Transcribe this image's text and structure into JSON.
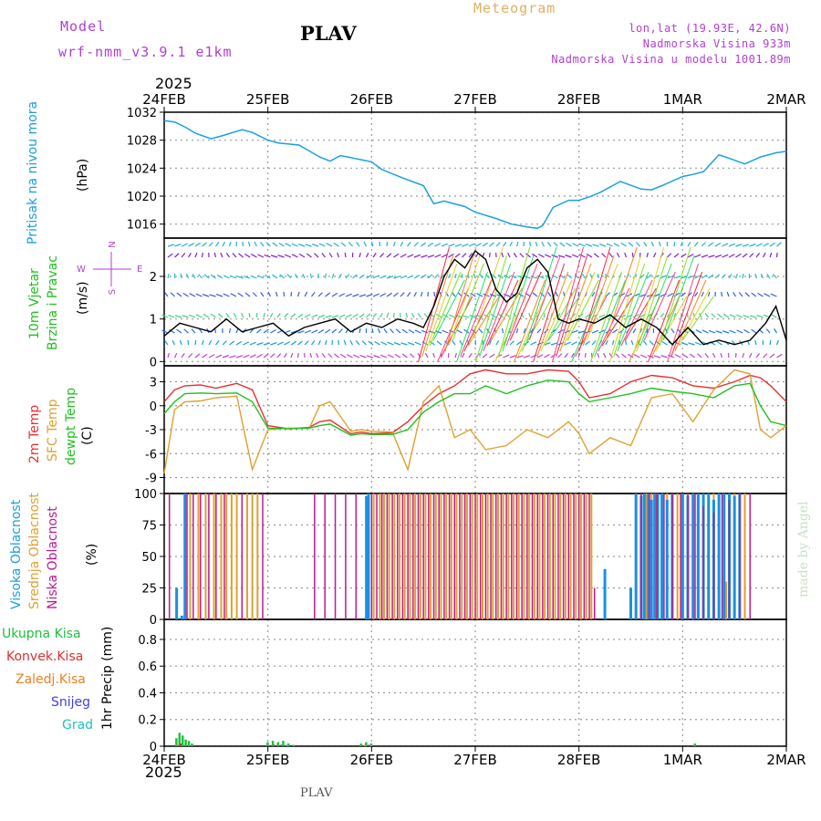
{
  "header": {
    "model_label": "Model",
    "model_name": "wrf-nmm_v3.9.1 e1km",
    "station": "PLAV",
    "meteogram": "Meteogram",
    "coords": "lon,lat (19.93E, 42.6N)",
    "elevation": "Nadmorska Visina 933m",
    "model_elevation": "Nadmorska Visina u modelu 1001.89m",
    "year_top": "2025",
    "year_bottom": "2025",
    "footer_station": "PLAV",
    "watermark": "made by Angel"
  },
  "date_ticks": [
    "24FEB",
    "25FEB",
    "26FEB",
    "27FEB",
    "28FEB",
    "1MAR",
    "2MAR"
  ],
  "panel_labels": {
    "pressure": [
      "Pritisak na nivou mora",
      "(hPa)"
    ],
    "wind": [
      "10m Vjetar",
      "Brzina i Pravac",
      "(m/s)"
    ],
    "wind_rose": {
      "n": "N",
      "s": "S",
      "w": "W",
      "e": "E"
    },
    "temp": [
      "2m Temp",
      "SFC Temp",
      "dewpt Temp",
      "(C)"
    ],
    "cloud": [
      "Visoka Oblacnost",
      "Srednja Oblacnost",
      "Niska Oblacnost",
      "(%)"
    ],
    "precip": [
      "Ukupna Kisa",
      "Konvek.Kisa",
      "Zaledj.Kisa",
      "Snijeg",
      "Grad",
      "1hr Precip (mm)"
    ]
  },
  "colors": {
    "pressure": "#1aa0e0",
    "wind_speed": "#000000",
    "t2m": "#e83030",
    "tsfc": "#e0a030",
    "tdew": "#20c020",
    "cloud_high": "#1a90e0",
    "cloud_mid": "#e0a030",
    "cloud_low": "#c01890",
    "precip_total": "#20c040",
    "precip_conv": "#e03030",
    "precip_frz": "#f08020",
    "precip_snow": "#4040e0",
    "precip_hail": "#20c0c0",
    "model_text": "#b040d0",
    "meteogram_text": "#e0b060"
  },
  "chart_data": [
    {
      "type": "line",
      "panel": "pressure",
      "ylabel": "(hPa)",
      "ylim": [
        1014,
        1032
      ],
      "yticks": [
        1016,
        1020,
        1024,
        1028,
        1032
      ],
      "x": [
        0,
        0.1,
        0.2,
        0.3,
        0.45,
        0.55,
        0.75,
        0.85,
        1.0,
        1.1,
        1.3,
        1.5,
        1.6,
        1.7,
        1.8,
        1.9,
        2.0,
        2.1,
        2.3,
        2.5,
        2.6,
        2.7,
        2.9,
        3.0,
        3.2,
        3.35,
        3.5,
        3.6,
        3.65,
        3.75,
        3.9,
        4.0,
        4.1,
        4.2,
        4.4,
        4.6,
        4.7,
        4.8,
        5.0,
        5.1,
        5.2,
        5.35,
        5.45,
        5.6,
        5.75,
        5.9,
        6.0
      ],
      "values": [
        1030.8,
        1030.6,
        1029.9,
        1029.0,
        1028.2,
        1028.6,
        1029.5,
        1029.1,
        1028.0,
        1027.6,
        1027.3,
        1025.6,
        1025.0,
        1025.8,
        1025.5,
        1025.2,
        1024.9,
        1023.8,
        1022.6,
        1021.5,
        1018.9,
        1019.3,
        1018.5,
        1017.7,
        1016.8,
        1016.0,
        1015.6,
        1015.4,
        1015.8,
        1018.4,
        1019.4,
        1019.4,
        1019.9,
        1020.5,
        1022.1,
        1021.0,
        1020.9,
        1021.5,
        1022.8,
        1023.1,
        1023.5,
        1025.9,
        1025.4,
        1024.6,
        1025.6,
        1026.2,
        1026.4
      ],
      "series": [
        {
          "name": "Pritisak na nivou mora"
        }
      ]
    },
    {
      "type": "line",
      "panel": "wind",
      "ylabel": "(m/s)",
      "ylim": [
        -0.1,
        2.9
      ],
      "yticks": [
        0,
        1,
        2
      ],
      "x": [
        0,
        0.15,
        0.3,
        0.45,
        0.6,
        0.75,
        0.9,
        1.05,
        1.2,
        1.35,
        1.5,
        1.65,
        1.8,
        1.95,
        2.1,
        2.25,
        2.4,
        2.5,
        2.6,
        2.7,
        2.8,
        2.9,
        3.0,
        3.1,
        3.2,
        3.3,
        3.4,
        3.5,
        3.6,
        3.7,
        3.8,
        3.9,
        4.0,
        4.15,
        4.3,
        4.45,
        4.6,
        4.75,
        4.9,
        5.05,
        5.2,
        5.35,
        5.5,
        5.65,
        5.8,
        5.9,
        6.0
      ],
      "values": [
        0.6,
        0.9,
        0.8,
        0.7,
        1.0,
        0.7,
        0.8,
        0.9,
        0.6,
        0.8,
        0.9,
        1.0,
        0.7,
        0.9,
        0.8,
        1.0,
        0.9,
        0.8,
        1.3,
        2.0,
        2.4,
        2.2,
        2.6,
        2.4,
        1.7,
        1.4,
        1.6,
        2.2,
        2.4,
        2.1,
        1.0,
        0.9,
        1.0,
        0.9,
        1.1,
        0.8,
        1.0,
        0.8,
        0.4,
        0.8,
        0.4,
        0.5,
        0.4,
        0.5,
        0.9,
        1.3,
        0.5
      ],
      "series": [
        {
          "name": "10m Vjetar"
        }
      ]
    },
    {
      "type": "line",
      "panel": "temperature",
      "ylabel": "(C)",
      "ylim": [
        -11,
        5
      ],
      "yticks": [
        -9,
        -6,
        -3,
        0,
        3
      ],
      "x": [
        0,
        0.1,
        0.2,
        0.35,
        0.5,
        0.7,
        0.85,
        1.0,
        1.2,
        1.4,
        1.5,
        1.6,
        1.8,
        1.9,
        2.0,
        2.2,
        2.35,
        2.5,
        2.65,
        2.8,
        2.95,
        3.1,
        3.3,
        3.5,
        3.7,
        3.9,
        4.0,
        4.1,
        4.3,
        4.5,
        4.7,
        4.9,
        5.1,
        5.3,
        5.5,
        5.65,
        5.75,
        5.85,
        6.0
      ],
      "series": [
        {
          "name": "2m Temp",
          "values": [
            0.5,
            2.0,
            2.5,
            2.6,
            2.2,
            2.8,
            2.0,
            -2.5,
            -2.9,
            -2.7,
            -2.0,
            -1.8,
            -3.5,
            -3.3,
            -3.5,
            -3.4,
            -2.0,
            0.0,
            1.5,
            2.5,
            4.0,
            4.5,
            4.0,
            4.0,
            4.5,
            4.3,
            3.0,
            1.0,
            1.5,
            3.0,
            3.8,
            3.5,
            2.5,
            2.2,
            3.0,
            3.8,
            3.5,
            2.5,
            0.5
          ]
        },
        {
          "name": "SFC Temp",
          "values": [
            -8.5,
            -0.5,
            0.5,
            0.6,
            1.0,
            1.2,
            -8.0,
            -3.0,
            -2.8,
            -2.8,
            0.0,
            0.5,
            -3.2,
            -3.0,
            -3.2,
            -3.3,
            -8.0,
            0.5,
            2.5,
            -4.0,
            -3.0,
            -5.5,
            -5.0,
            -3.0,
            -4.0,
            -2.0,
            -3.5,
            -6.0,
            -4.0,
            -5.0,
            1.0,
            1.5,
            -2.0,
            2.0,
            4.5,
            4.0,
            -3.0,
            -4.0,
            -2.5
          ]
        },
        {
          "name": "dewpt Temp",
          "values": [
            -1.0,
            0.5,
            1.5,
            1.6,
            1.5,
            1.6,
            0.5,
            -2.8,
            -2.9,
            -2.8,
            -2.5,
            -2.3,
            -3.7,
            -3.5,
            -3.6,
            -3.6,
            -3.0,
            -0.8,
            0.5,
            1.5,
            1.5,
            2.5,
            1.5,
            2.5,
            3.2,
            3.0,
            1.5,
            0.5,
            1.0,
            1.5,
            2.2,
            1.8,
            1.5,
            1.0,
            2.5,
            2.8,
            0.0,
            -2.0,
            -2.5
          ]
        }
      ]
    },
    {
      "type": "bar",
      "panel": "cloud",
      "ylabel": "(%)",
      "ylim": [
        0,
        100
      ],
      "yticks": [
        0,
        25,
        50,
        75,
        100
      ],
      "series": [
        {
          "name": "Visoka Oblacnost",
          "x": [
            0.12,
            0.17,
            0.2,
            1.95,
            1.97,
            4.25,
            4.5,
            4.55,
            4.6,
            4.63,
            4.67,
            4.7,
            4.73,
            4.76,
            4.8,
            4.85,
            4.9,
            5.0,
            5.05,
            5.1,
            5.15,
            5.2,
            5.25,
            5.3,
            5.35,
            5.4,
            5.45,
            5.5,
            5.55
          ],
          "values": [
            25,
            3,
            100,
            98,
            100,
            40,
            25,
            100,
            98,
            100,
            100,
            95,
            100,
            100,
            100,
            95,
            100,
            100,
            98,
            100,
            100,
            100,
            100,
            95,
            100,
            100,
            100,
            98,
            100
          ]
        },
        {
          "name": "Srednja Oblacnost",
          "x": [
            0.25,
            0.33,
            0.4,
            0.48,
            0.55,
            0.6,
            0.65,
            0.7,
            0.8,
            0.85,
            0.9,
            1.95,
            2.02,
            2.08,
            2.12,
            2.17,
            2.22,
            2.27,
            2.32,
            2.37,
            2.42,
            2.47,
            2.52,
            2.57,
            2.62,
            2.67,
            2.72,
            2.77,
            2.82,
            2.87,
            2.92,
            2.97,
            3.02,
            3.07,
            3.12,
            3.17,
            3.22,
            3.27,
            3.32,
            3.37,
            3.42,
            3.47,
            3.52,
            3.57,
            3.62,
            3.67,
            3.72,
            3.77,
            3.82,
            3.87,
            3.92,
            3.97,
            4.02,
            4.07,
            4.12,
            4.6,
            4.65,
            4.7,
            4.75,
            4.8,
            4.85,
            4.9,
            4.95,
            5.0,
            5.05,
            5.1,
            5.15,
            5.2,
            5.25,
            5.3,
            5.35,
            5.42,
            5.5,
            5.6
          ],
          "values": [
            100,
            100,
            100,
            100,
            100,
            100,
            100,
            100,
            100,
            100,
            100,
            25,
            100,
            100,
            100,
            100,
            100,
            100,
            100,
            100,
            100,
            100,
            100,
            100,
            100,
            100,
            100,
            100,
            100,
            100,
            100,
            100,
            100,
            100,
            100,
            100,
            100,
            100,
            100,
            100,
            100,
            100,
            100,
            100,
            100,
            100,
            100,
            100,
            100,
            100,
            100,
            100,
            100,
            100,
            100,
            100,
            100,
            100,
            100,
            100,
            100,
            100,
            100,
            100,
            100,
            100,
            100,
            100,
            100,
            100,
            100,
            30,
            100,
            100
          ]
        },
        {
          "name": "Niska Oblacnost",
          "x": [
            0.05,
            0.22,
            0.28,
            0.35,
            0.43,
            0.5,
            0.58,
            0.75,
            0.95,
            1.45,
            1.55,
            1.65,
            1.75,
            1.85,
            2.0,
            2.05,
            2.1,
            2.15,
            2.2,
            2.25,
            2.3,
            2.35,
            2.4,
            2.45,
            2.5,
            2.55,
            2.6,
            2.65,
            2.7,
            2.75,
            2.8,
            2.85,
            2.9,
            2.95,
            3.0,
            3.05,
            3.1,
            3.15,
            3.2,
            3.25,
            3.3,
            3.35,
            3.4,
            3.45,
            3.5,
            3.55,
            3.6,
            3.65,
            3.7,
            3.75,
            3.8,
            3.85,
            3.9,
            3.95,
            4.0,
            4.05,
            4.1,
            4.15,
            4.6,
            4.68,
            4.75,
            4.82,
            4.9,
            4.98,
            5.05,
            5.12,
            5.2,
            5.3,
            5.38,
            5.45,
            5.55,
            5.65
          ],
          "values": [
            100,
            100,
            100,
            100,
            100,
            100,
            100,
            100,
            100,
            100,
            100,
            100,
            100,
            100,
            100,
            100,
            100,
            100,
            100,
            100,
            100,
            100,
            100,
            100,
            100,
            100,
            100,
            100,
            100,
            100,
            100,
            100,
            100,
            100,
            100,
            100,
            100,
            100,
            100,
            100,
            100,
            100,
            100,
            100,
            100,
            100,
            100,
            100,
            100,
            100,
            100,
            100,
            100,
            100,
            100,
            100,
            100,
            25,
            100,
            100,
            100,
            100,
            100,
            100,
            100,
            100,
            90,
            85,
            100,
            95,
            100,
            100
          ]
        }
      ]
    },
    {
      "type": "bar",
      "panel": "precip",
      "ylabel": "1hr Precip (mm)",
      "ylim": [
        0,
        0.95
      ],
      "yticks": [
        0,
        0.2,
        0.4,
        0.6,
        0.8
      ],
      "series": [
        {
          "name": "Ukupna Kisa",
          "x": [
            0.12,
            0.15,
            0.18,
            0.21,
            0.24,
            0.27,
            1.0,
            1.05,
            1.1,
            1.15,
            1.2,
            1.25,
            1.9,
            1.95,
            2.0,
            5.12
          ],
          "values": [
            0.06,
            0.1,
            0.08,
            0.05,
            0.04,
            0.02,
            0.03,
            0.04,
            0.03,
            0.04,
            0.02,
            0.01,
            0.02,
            0.03,
            0.02,
            0.02
          ]
        },
        {
          "name": "Konvek.Kisa",
          "x": [
            0.15,
            1.05
          ],
          "values": [
            0.02,
            0.01
          ]
        },
        {
          "name": "Zaledj.Kisa",
          "x": [
            1.92,
            1.98
          ],
          "values": [
            0.01,
            0.01
          ]
        },
        {
          "name": "Snijeg",
          "x": [
            1.1,
            1.95
          ],
          "values": [
            0.01,
            0.01
          ]
        },
        {
          "name": "Grad",
          "x": [
            1.15
          ],
          "values": [
            0.01
          ]
        }
      ]
    }
  ]
}
